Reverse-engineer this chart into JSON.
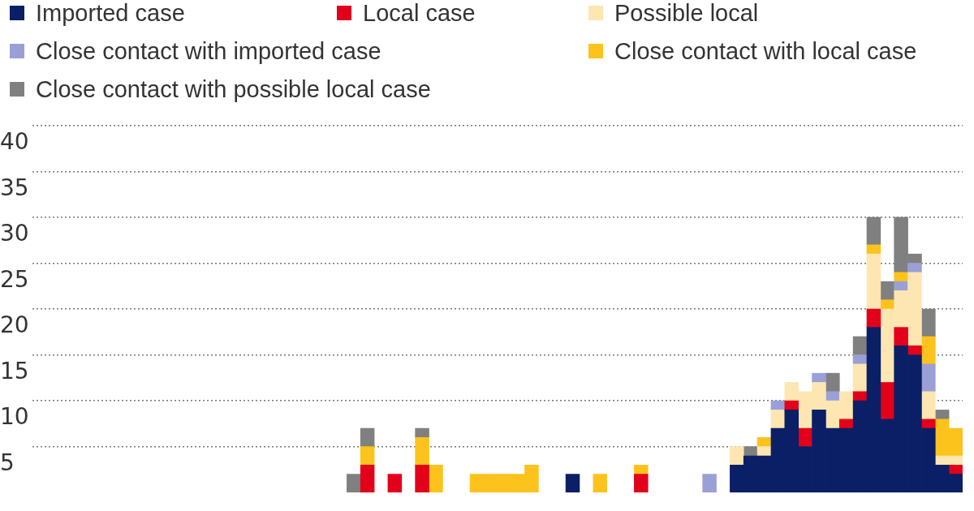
{
  "chart_data": {
    "type": "bar",
    "stacked": true,
    "legend": "top",
    "grid": "y",
    "tick_labels": "y",
    "categories": [
      null,
      null,
      null,
      null,
      null,
      null,
      null,
      null,
      null,
      null,
      null,
      null,
      null,
      null,
      null,
      null,
      null,
      null,
      null,
      null,
      null,
      null,
      null,
      null,
      null,
      null,
      null,
      null,
      null,
      null,
      null,
      null,
      null,
      null,
      null,
      null,
      null,
      null,
      null,
      null,
      null,
      null,
      null,
      null,
      null,
      null,
      null,
      null,
      null,
      null,
      null,
      null,
      null,
      null,
      null,
      null,
      null,
      null,
      null,
      null,
      null,
      null,
      null,
      null,
      null,
      null,
      null,
      null
    ],
    "ylim": [
      0,
      40
    ],
    "yticks": [
      5,
      10,
      15,
      20,
      25,
      30,
      35,
      40
    ],
    "series": [
      {
        "name": "Imported case",
        "color": "#0b1f66",
        "values": [
          null,
          null,
          null,
          null,
          null,
          null,
          null,
          null,
          null,
          null,
          null,
          null,
          null,
          null,
          null,
          null,
          null,
          null,
          null,
          null,
          null,
          null,
          null,
          null,
          null,
          null,
          null,
          null,
          null,
          null,
          null,
          null,
          null,
          null,
          null,
          null,
          null,
          null,
          null,
          2,
          null,
          null,
          null,
          null,
          null,
          null,
          null,
          null,
          null,
          null,
          null,
          3,
          4,
          4,
          7,
          9,
          5,
          9,
          7,
          7,
          10,
          18,
          8,
          16,
          15,
          7,
          3,
          2
        ]
      },
      {
        "name": "Local case",
        "color": "#e3001b",
        "values": [
          null,
          null,
          null,
          null,
          null,
          null,
          null,
          null,
          null,
          null,
          null,
          null,
          null,
          null,
          null,
          null,
          null,
          null,
          null,
          null,
          null,
          null,
          null,
          null,
          3,
          null,
          2,
          null,
          3,
          null,
          null,
          null,
          null,
          null,
          null,
          null,
          null,
          null,
          null,
          null,
          null,
          null,
          null,
          null,
          2,
          null,
          null,
          null,
          null,
          null,
          null,
          null,
          null,
          null,
          null,
          1,
          2,
          null,
          null,
          1,
          1,
          2,
          4,
          2,
          1,
          1,
          null,
          1
        ]
      },
      {
        "name": "Possible local",
        "color": "#fde6b2",
        "values": [
          null,
          null,
          null,
          null,
          null,
          null,
          null,
          null,
          null,
          null,
          null,
          null,
          null,
          null,
          null,
          null,
          null,
          null,
          null,
          null,
          null,
          null,
          null,
          null,
          null,
          null,
          null,
          null,
          null,
          null,
          null,
          null,
          null,
          null,
          null,
          null,
          null,
          null,
          null,
          null,
          null,
          null,
          null,
          null,
          null,
          null,
          null,
          null,
          null,
          null,
          null,
          2,
          null,
          1,
          2,
          2,
          4,
          3,
          3,
          3,
          3,
          6,
          8,
          4,
          8,
          3,
          1,
          1
        ]
      },
      {
        "name": "Close contact with imported case",
        "color": "#9aa0d6",
        "values": [
          null,
          null,
          null,
          null,
          null,
          null,
          null,
          null,
          null,
          null,
          null,
          null,
          null,
          null,
          null,
          null,
          null,
          null,
          null,
          null,
          null,
          null,
          null,
          null,
          null,
          null,
          null,
          null,
          null,
          null,
          null,
          null,
          null,
          null,
          null,
          null,
          null,
          null,
          null,
          null,
          null,
          null,
          null,
          null,
          null,
          null,
          null,
          null,
          null,
          2,
          null,
          null,
          null,
          null,
          1,
          null,
          null,
          1,
          1,
          null,
          1,
          null,
          null,
          1,
          1,
          3,
          null,
          null
        ]
      },
      {
        "name": "Close contact with local case",
        "color": "#fbc31c",
        "values": [
          null,
          null,
          null,
          null,
          null,
          null,
          null,
          null,
          null,
          null,
          null,
          null,
          null,
          null,
          null,
          null,
          null,
          null,
          null,
          null,
          null,
          null,
          null,
          null,
          2,
          null,
          null,
          null,
          3,
          3,
          null,
          null,
          2,
          2,
          2,
          2,
          3,
          null,
          null,
          null,
          null,
          2,
          null,
          null,
          1,
          null,
          null,
          null,
          null,
          null,
          null,
          null,
          null,
          1,
          null,
          null,
          null,
          null,
          null,
          null,
          null,
          1,
          1,
          1,
          null,
          3,
          4,
          3
        ]
      },
      {
        "name": "Close contact with possible local case",
        "color": "#808080",
        "values": [
          null,
          null,
          null,
          null,
          null,
          null,
          null,
          null,
          null,
          null,
          null,
          null,
          null,
          null,
          null,
          null,
          null,
          null,
          null,
          null,
          null,
          null,
          null,
          2,
          2,
          null,
          null,
          null,
          1,
          null,
          null,
          null,
          null,
          null,
          null,
          null,
          null,
          null,
          null,
          null,
          null,
          null,
          null,
          null,
          null,
          null,
          null,
          null,
          null,
          null,
          null,
          null,
          1,
          null,
          null,
          null,
          null,
          null,
          2,
          null,
          2,
          3,
          2,
          6,
          1,
          3,
          1,
          null
        ]
      }
    ]
  }
}
